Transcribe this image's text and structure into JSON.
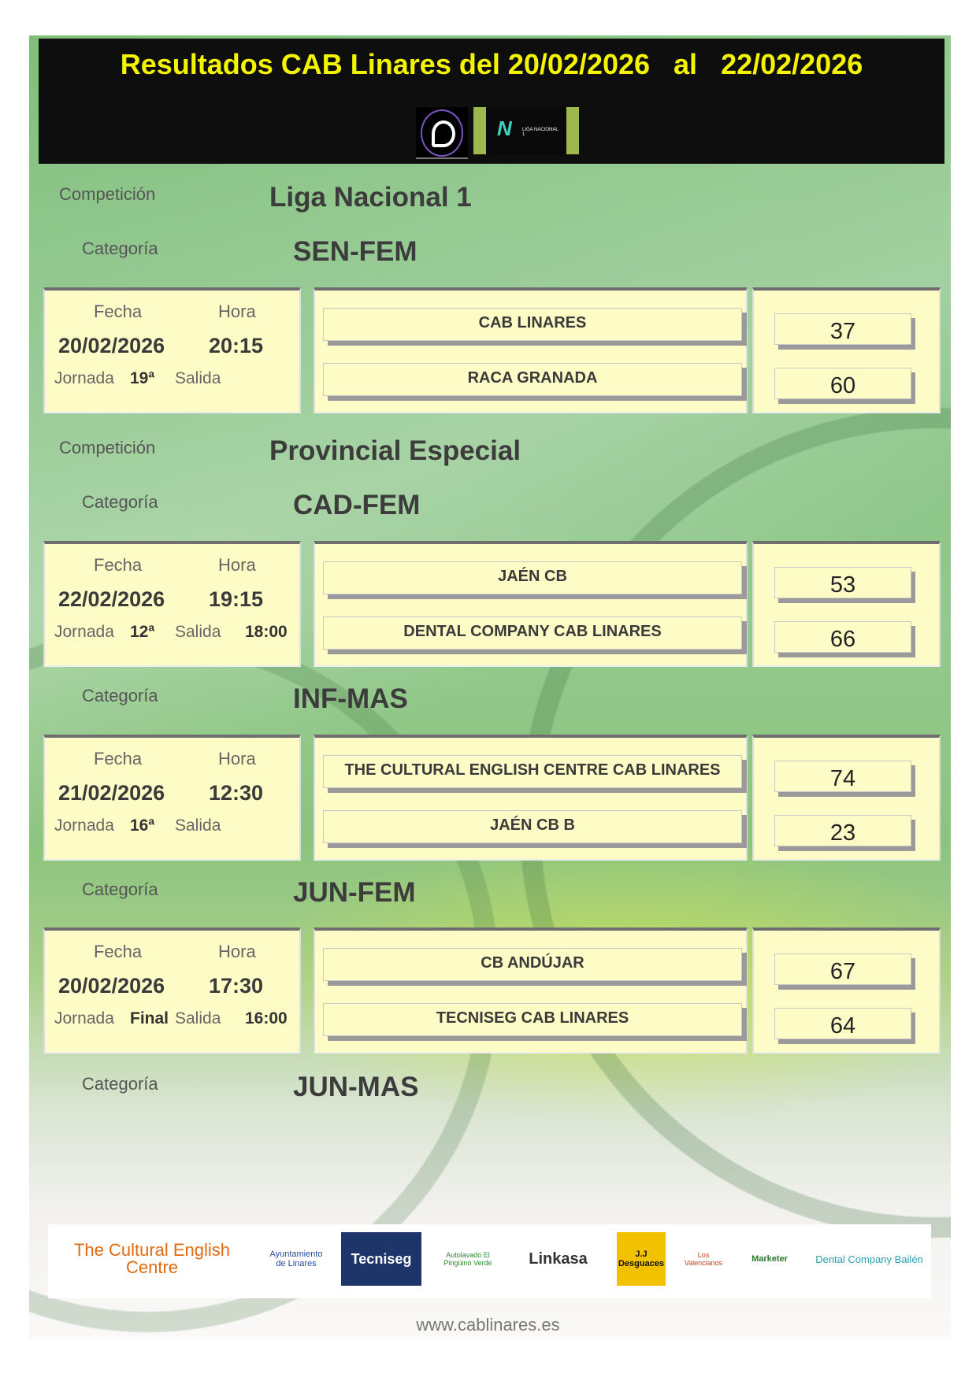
{
  "header": {
    "title": "Resultados CAB Linares del 20/02/2026   al   22/02/2026",
    "title_color": "#f4f400",
    "logos": [
      "federation-logo",
      "liga-nacional-1-logo"
    ],
    "logo2_text": "LIGA NACIONAL 1"
  },
  "labels": {
    "competicion": "Competición",
    "categoria": "Categoría",
    "fecha": "Fecha",
    "hora": "Hora",
    "jornada": "Jornada",
    "salida": "Salida"
  },
  "sections": [
    {
      "competition": "Liga Nacional 1",
      "category": "SEN-FEM",
      "date": "20/02/2026",
      "time": "20:15",
      "jornada": "19ª",
      "salida": "",
      "home": "CAB LINARES",
      "away": "RACA GRANADA",
      "home_score": "37",
      "away_score": "60"
    },
    {
      "competition": "Provincial Especial",
      "category": "CAD-FEM",
      "date": "22/02/2026",
      "time": "19:15",
      "jornada": "12ª",
      "salida": "18:00",
      "home": "JAÉN CB",
      "away": "DENTAL COMPANY CAB LINARES",
      "home_score": "53",
      "away_score": "66"
    },
    {
      "competition": "",
      "category": "INF-MAS",
      "date": "21/02/2026",
      "time": "12:30",
      "jornada": "16ª",
      "salida": "",
      "home": "THE CULTURAL ENGLISH CENTRE CAB LINARES",
      "away": "JAÉN CB B",
      "home_score": "74",
      "away_score": "23"
    },
    {
      "competition": "",
      "category": "JUN-FEM",
      "date": "20/02/2026",
      "time": "17:30",
      "jornada": "Final",
      "salida": "16:00",
      "home": "CB ANDÚJAR",
      "away": "TECNISEG CAB LINARES",
      "home_score": "67",
      "away_score": "64"
    }
  ],
  "last_category": "JUN-MAS",
  "sponsors": [
    "The Cultural English Centre",
    "Ayuntamiento de Linares",
    "Tecniseg",
    "Autolavado El Pingüino Verde",
    "Linkasa",
    "J.J Desguaces",
    "Los Valencianos",
    "Marketer",
    "Dental Company Bailén"
  ],
  "website": "www.cablinares.es"
}
